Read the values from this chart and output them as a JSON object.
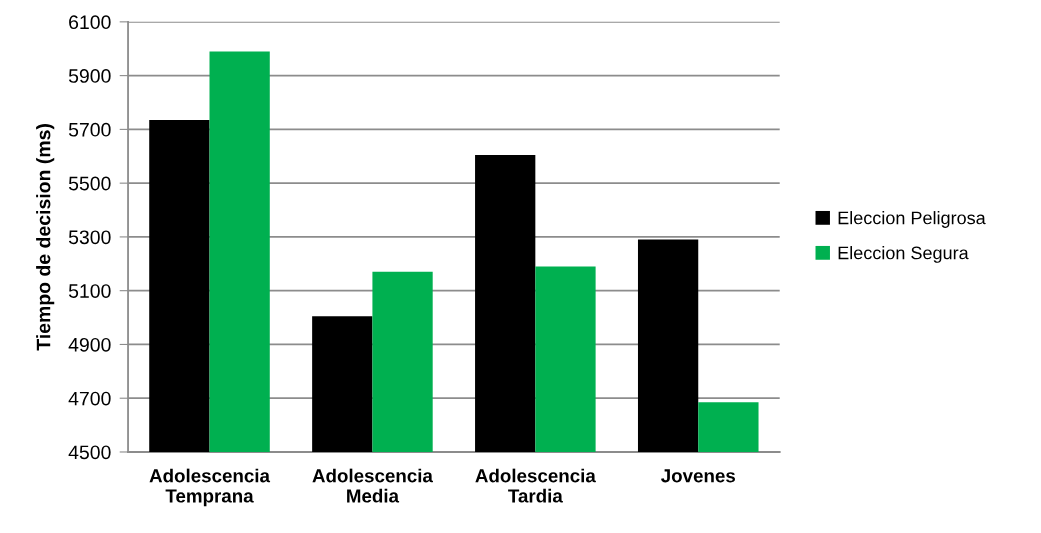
{
  "chart_data": {
    "type": "bar",
    "ylabel": "Tiempo de decision (ms)",
    "categories": [
      "Adolescencia\nTemprana",
      "Adolescencia\nMedia",
      "Adolescencia\nTardia",
      "Jovenes"
    ],
    "series": [
      {
        "name": "Eleccion Peligrosa",
        "color": "#000000",
        "values": [
          5735,
          5005,
          5605,
          5290
        ]
      },
      {
        "name": "Eleccion Segura",
        "color": "#00b050",
        "values": [
          5990,
          5170,
          5190,
          4685
        ]
      }
    ],
    "ylim": [
      4500,
      6100
    ],
    "yticks": [
      4500,
      4700,
      4900,
      5100,
      5300,
      5500,
      5700,
      5900,
      6100
    ],
    "grid": "y",
    "legend": "right"
  }
}
